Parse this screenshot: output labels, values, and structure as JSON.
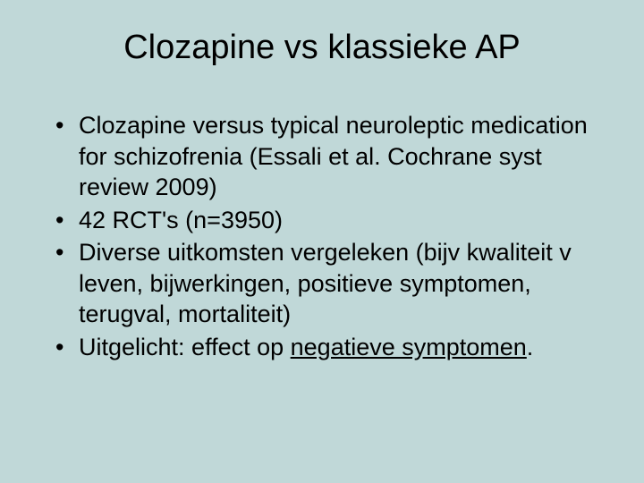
{
  "slide": {
    "background_color": "#c0d8d8",
    "text_color": "#000000",
    "title": "Clozapine vs klassieke AP",
    "title_fontsize": 38,
    "body_fontsize": 27,
    "font_family": "Arial",
    "bullets": [
      {
        "text": "Clozapine versus typical neuroleptic medication for schizofrenia (Essali et al. Cochrane syst review 2009)"
      },
      {
        "text": "42 RCT's (n=3950)"
      },
      {
        "text": "Diverse uitkomsten vergeleken (bijv kwaliteit v leven, bijwerkingen, positieve symptomen, terugval, mortaliteit)"
      },
      {
        "prefix": "Uitgelicht: effect op ",
        "underlined": "negatieve symptomen",
        "suffix": "."
      }
    ],
    "bullet_marker": "•"
  }
}
